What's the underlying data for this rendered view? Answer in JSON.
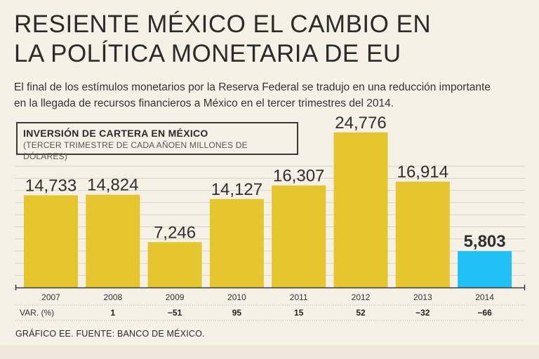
{
  "title_line1": "RESIENTE MÉXICO EL CAMBIO EN",
  "title_line2": "LA POLÍTICA MONETARIA DE EU",
  "subtitle_line1": "El final de los estímulos monetarios por la Reserva Federal se tradujo en una reducción importante",
  "subtitle_line2": "en la llegada de recursos financieros a México en el tercer trimestres del 2014.",
  "legend": {
    "title": "INVERSIÓN DE CARTERA EN MÉXICO",
    "subtitle": "(TERCER TRIMESTRE DE CADA AÑOEN MILLONES DE DÓLARES)"
  },
  "footer": "GRÁFICO EE. FUENTE: BANCO DE MÉXICO.",
  "colors": {
    "bar": "#e6c62e",
    "highlight": "#1fc0f2",
    "grid": "#dcd5c6",
    "axis": "#3a3a3a"
  },
  "chart_data": {
    "type": "bar",
    "title": "INVERSIÓN DE CARTERA EN MÉXICO",
    "subtitle": "(TERCER TRIMESTRE DE CADA AÑOEN MILLONES DE DÓLARES)",
    "xlabel": "",
    "ylabel": "Millones de dólares",
    "ylim": [
      0,
      26000
    ],
    "categories": [
      "2007",
      "2008",
      "2009",
      "2010",
      "2011",
      "2012",
      "2013",
      "2014"
    ],
    "values": [
      14733,
      14824,
      7246,
      14127,
      16307,
      24776,
      16914,
      5803
    ],
    "value_labels": [
      "14,733",
      "14,824",
      "7,246",
      "14,127",
      "16,307",
      "24,776",
      "16,914",
      "5,803"
    ],
    "highlight_index": 7,
    "variation_label": "VAR. (%)",
    "variation": [
      "",
      "1",
      "−51",
      "95",
      "15",
      "52",
      "−32",
      "−66"
    ],
    "grid": true
  }
}
